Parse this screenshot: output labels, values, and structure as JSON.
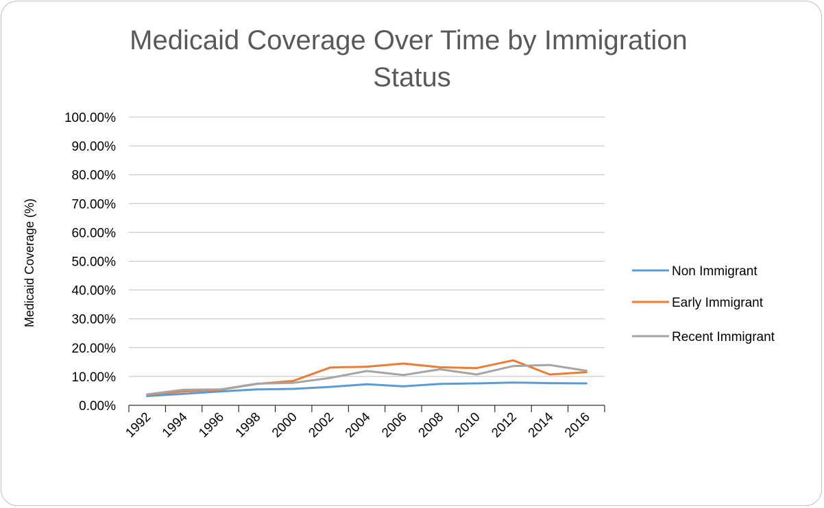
{
  "chart_data": {
    "type": "line",
    "title": "Medicaid Coverage Over Time by Immigration Status",
    "title_lines": [
      "Medicaid Coverage Over Time by Immigration",
      "Status"
    ],
    "xlabel": "",
    "ylabel": "Medicaid Coverage (%)",
    "ylim": [
      0,
      1
    ],
    "yticks": [
      0,
      0.1,
      0.2,
      0.3,
      0.4,
      0.5,
      0.6,
      0.7,
      0.8,
      0.9,
      1.0
    ],
    "ytick_labels": [
      "0.00%",
      "10.00%",
      "20.00%",
      "30.00%",
      "40.00%",
      "50.00%",
      "60.00%",
      "70.00%",
      "80.00%",
      "90.00%",
      "100.00%"
    ],
    "categories": [
      "1992",
      "1994",
      "1996",
      "1998",
      "2000",
      "2002",
      "2004",
      "2006",
      "2008",
      "2010",
      "2012",
      "2014",
      "2016"
    ],
    "grid": true,
    "legend_position": "right",
    "series": [
      {
        "name": "Non Immigrant",
        "color": "#5b9bd5",
        "values": [
          0.032,
          0.04,
          0.048,
          0.055,
          0.057,
          0.064,
          0.073,
          0.066,
          0.074,
          0.076,
          0.079,
          0.077,
          0.076
        ]
      },
      {
        "name": "Early Immigrant",
        "color": "#ed7d31",
        "values": [
          0.037,
          0.048,
          0.054,
          0.074,
          0.085,
          0.131,
          0.134,
          0.145,
          0.132,
          0.129,
          0.156,
          0.107,
          0.115
        ]
      },
      {
        "name": "Recent Immigrant",
        "color": "#a5a5a5",
        "values": [
          0.038,
          0.054,
          0.055,
          0.075,
          0.078,
          0.095,
          0.119,
          0.105,
          0.125,
          0.107,
          0.136,
          0.14,
          0.12
        ]
      }
    ]
  }
}
